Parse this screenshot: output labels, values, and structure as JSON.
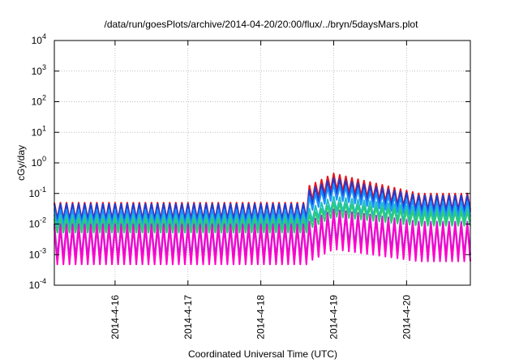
{
  "chart_data": {
    "type": "line",
    "title": "/data/run/goesPlots/archive/2014-04-20/20:00/flux/../bryn/5daysMars.plot",
    "xlabel": "Coordinated Universal Time (UTC)",
    "ylabel": "cGy/day",
    "y_scale": "log",
    "ylim": [
      0.0001,
      10000
    ],
    "y_ticks": [
      {
        "value": 0.0001,
        "base": "10",
        "exp": "-4"
      },
      {
        "value": 0.001,
        "base": "10",
        "exp": "-3"
      },
      {
        "value": 0.01,
        "base": "10",
        "exp": "-2"
      },
      {
        "value": 0.1,
        "base": "10",
        "exp": "-1"
      },
      {
        "value": 1,
        "base": "10",
        "exp": "0"
      },
      {
        "value": 10,
        "base": "10",
        "exp": "1"
      },
      {
        "value": 100,
        "base": "10",
        "exp": "2"
      },
      {
        "value": 1000,
        "base": "10",
        "exp": "3"
      },
      {
        "value": 10000,
        "base": "10",
        "exp": "4"
      }
    ],
    "x_range_days": [
      "2014-04-15 04:00",
      "2014-04-20 21:00"
    ],
    "x_ticks": [
      "2014-4-16",
      "2014-4-17",
      "2014-4-18",
      "2014-4-19",
      "2014-4-20"
    ],
    "grid": true,
    "oscillation_period_hours": 2.0,
    "series": [
      {
        "color": "#e8141a",
        "quiet_peak": 0.05,
        "trough_factor": 0.3,
        "event_peak": 0.45,
        "event_late": 0.1
      },
      {
        "color": "#1a3fd6",
        "quiet_peak": 0.045,
        "trough_factor": 0.3,
        "event_peak": 0.32,
        "event_late": 0.085
      },
      {
        "color": "#1e90ff",
        "quiet_peak": 0.03,
        "trough_factor": 0.32,
        "event_peak": 0.2,
        "event_late": 0.055
      },
      {
        "color": "#20c0c0",
        "quiet_peak": 0.02,
        "trough_factor": 0.35,
        "event_peak": 0.08,
        "event_late": 0.035
      },
      {
        "color": "#2ecc71",
        "quiet_peak": 0.015,
        "trough_factor": 0.35,
        "event_peak": 0.05,
        "event_late": 0.025
      },
      {
        "color": "#9b30d9",
        "quiet_peak": 0.01,
        "trough_factor": 0.08,
        "event_peak": 0.03,
        "event_late": 0.012
      },
      {
        "color": "#ff00cc",
        "quiet_peak": 0.008,
        "trough_factor": 0.06,
        "event_peak": 0.025,
        "event_late": 0.01
      }
    ],
    "event_start": "2014-04-18 16:00",
    "event_peak_time": "2014-04-19 00:00"
  }
}
